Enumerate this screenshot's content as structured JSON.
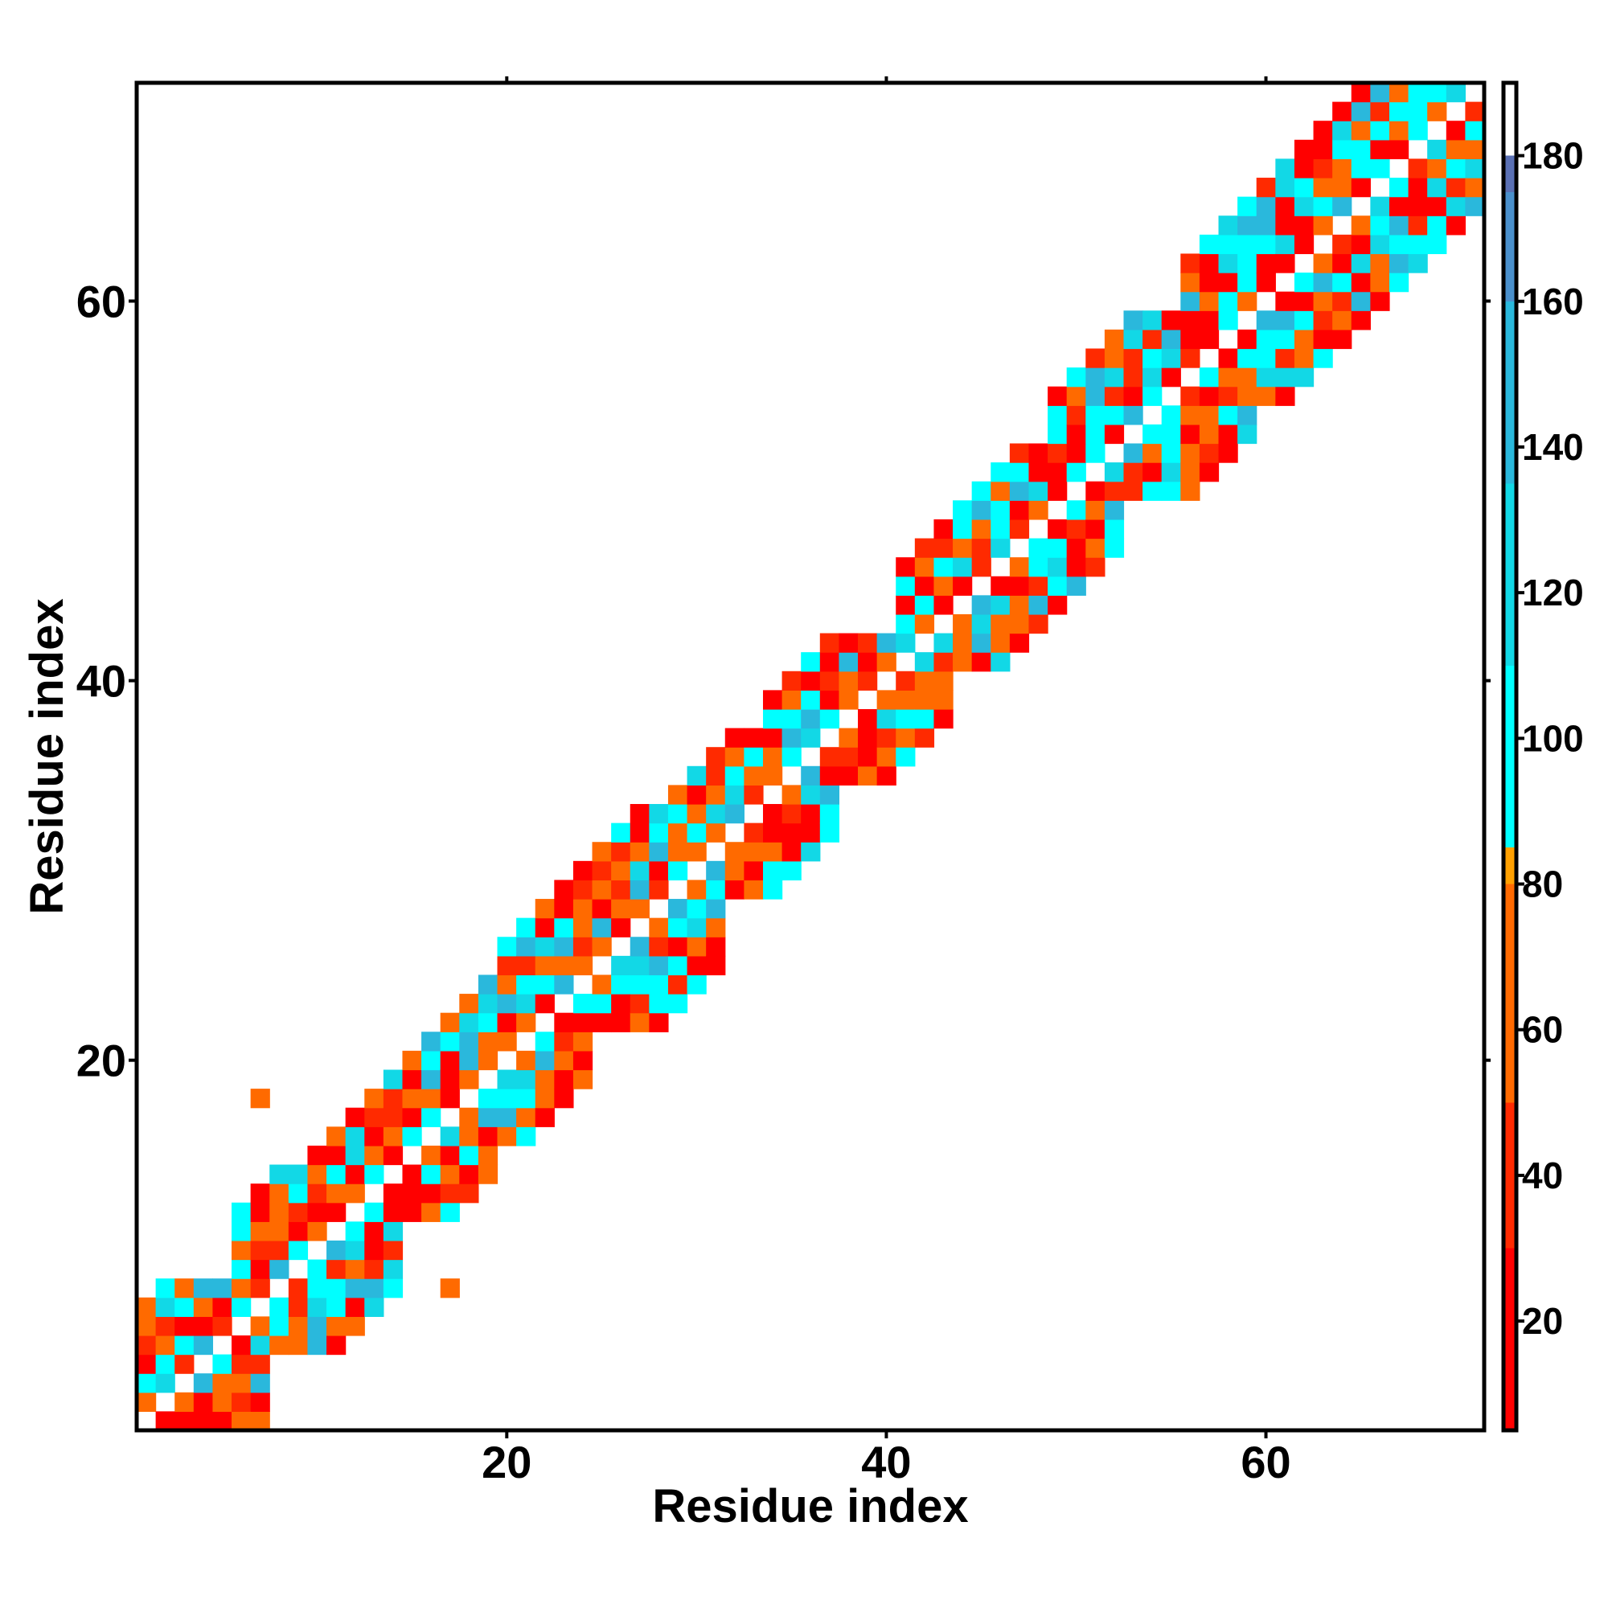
{
  "chart_data": {
    "type": "heatmap",
    "title": "",
    "xlabel": "Residue index",
    "ylabel": "Residue index",
    "xlim": [
      0.5,
      71.5
    ],
    "ylim": [
      0.5,
      71.5
    ],
    "x_ticks": [
      20,
      40,
      60
    ],
    "y_ticks": [
      20,
      40,
      60
    ],
    "colorbar": {
      "ticks": [
        20,
        40,
        60,
        80,
        100,
        120,
        140,
        160,
        180
      ],
      "range": [
        5,
        190
      ],
      "stops": [
        {
          "value": 5,
          "color": "#ff0000"
        },
        {
          "value": 30,
          "color": "#ff2a00"
        },
        {
          "value": 50,
          "color": "#ff6a00"
        },
        {
          "value": 80,
          "color": "#ffa000"
        },
        {
          "value": 85,
          "color": "#00ffff"
        },
        {
          "value": 110,
          "color": "#12d8e6"
        },
        {
          "value": 135,
          "color": "#2ab8dc"
        },
        {
          "value": 160,
          "color": "#4a90cc"
        },
        {
          "value": 175,
          "color": "#5a70b4"
        },
        {
          "value": 180,
          "color": "#ffffff"
        }
      ]
    },
    "grid": false,
    "legend": "colorbar-right",
    "bands": [
      {
        "x": [
          1,
          7
        ],
        "y": [
          1,
          8
        ],
        "min": 1,
        "max": 6
      },
      {
        "x": [
          6,
          14
        ],
        "y": [
          5,
          14
        ],
        "min": 1,
        "max": 6
      },
      {
        "x": [
          9,
          19
        ],
        "y": [
          12,
          20
        ],
        "min": 1,
        "max": 5
      },
      {
        "x": [
          15,
          24
        ],
        "y": [
          16,
          24
        ],
        "min": 1,
        "max": 5
      },
      {
        "x": [
          20,
          31
        ],
        "y": [
          22,
          33
        ],
        "min": 1,
        "max": 6
      },
      {
        "x": [
          28,
          37
        ],
        "y": [
          29,
          37
        ],
        "min": 1,
        "max": 5
      },
      {
        "x": [
          34,
          43
        ],
        "y": [
          35,
          42
        ],
        "min": 1,
        "max": 5
      },
      {
        "x": [
          41,
          52
        ],
        "y": [
          41,
          52
        ],
        "min": 1,
        "max": 5
      },
      {
        "x": [
          49,
          59
        ],
        "y": [
          50,
          59
        ],
        "min": 1,
        "max": 6
      },
      {
        "x": [
          56,
          71
        ],
        "y": [
          55,
          71
        ],
        "min": 1,
        "max": 6
      }
    ],
    "outliers": [
      {
        "x": 7,
        "y": 18,
        "value": 60
      },
      {
        "x": 17,
        "y": 8,
        "value": 60
      }
    ]
  }
}
